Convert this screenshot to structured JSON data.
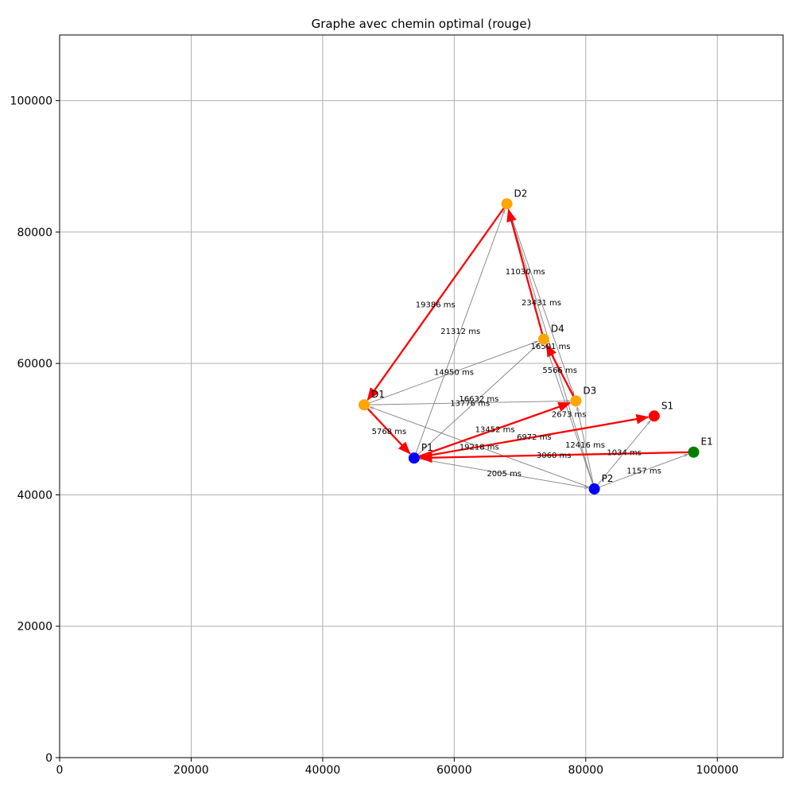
{
  "chart_data": {
    "type": "graph",
    "title": "Graphe avec chemin optimal (rouge)",
    "xlim": [
      0,
      110000
    ],
    "ylim": [
      0,
      110000
    ],
    "grid": true,
    "xticks": [
      0,
      20000,
      40000,
      60000,
      80000,
      100000
    ],
    "yticks": [
      0,
      20000,
      40000,
      60000,
      80000,
      100000
    ],
    "colors": {
      "P": "#0000ff",
      "D": "#ffa500",
      "S": "#ff0000",
      "E": "#008000",
      "edge": "#808080",
      "path": "#ff0000"
    },
    "nodes": [
      {
        "id": "D1",
        "label": "D1",
        "x": 46300,
        "y": 53700,
        "type": "D"
      },
      {
        "id": "D2",
        "label": "D2",
        "x": 68000,
        "y": 84300,
        "type": "D"
      },
      {
        "id": "D3",
        "label": "D3",
        "x": 78500,
        "y": 54300,
        "type": "D"
      },
      {
        "id": "D4",
        "label": "D4",
        "x": 73600,
        "y": 63700,
        "type": "D"
      },
      {
        "id": "P1",
        "label": "P1",
        "x": 53900,
        "y": 45600,
        "type": "P"
      },
      {
        "id": "P2",
        "label": "P2",
        "x": 81300,
        "y": 40900,
        "type": "P"
      },
      {
        "id": "S1",
        "label": "S1",
        "x": 90400,
        "y": 52000,
        "type": "S"
      },
      {
        "id": "E1",
        "label": "E1",
        "x": 96400,
        "y": 46500,
        "type": "E"
      }
    ],
    "edges": [
      {
        "from": "P1",
        "to": "D2",
        "label": "21312 ms"
      },
      {
        "from": "P1",
        "to": "D4",
        "label": "16632 ms"
      },
      {
        "from": "P1",
        "to": "P2",
        "label": "2005 ms"
      },
      {
        "from": "P2",
        "to": "D2",
        "label": "16501 ms"
      },
      {
        "from": "P2",
        "to": "D4",
        "label": "2673 ms"
      },
      {
        "from": "P2",
        "to": "D3",
        "label": "12416 ms"
      },
      {
        "from": "P2",
        "to": "D1",
        "label": "19218 ms"
      },
      {
        "from": "P2",
        "to": "S1",
        "label": "1034 ms"
      },
      {
        "from": "P2",
        "to": "E1",
        "label": "1157 ms"
      },
      {
        "from": "D1",
        "to": "D4",
        "label": "14950 ms"
      },
      {
        "from": "D1",
        "to": "D3",
        "label": "13776 ms"
      },
      {
        "from": "D2",
        "to": "D3",
        "label": "23431 ms"
      },
      {
        "from": "E1",
        "to": "P1",
        "label": "3060 ms"
      },
      {
        "from": "P1",
        "to": "D1",
        "label": "5768 ms"
      },
      {
        "from": "P1",
        "to": "D3",
        "label": "13452 ms"
      },
      {
        "from": "D3",
        "to": "D4",
        "label": "5566 ms"
      },
      {
        "from": "D4",
        "to": "D2",
        "label": "11030 ms"
      },
      {
        "from": "D2",
        "to": "D1",
        "label": "19386 ms"
      },
      {
        "from": "P1",
        "to": "S1",
        "label": "6972 ms"
      }
    ],
    "optimal_path": [
      {
        "from": "E1",
        "to": "P1"
      },
      {
        "from": "P1",
        "to": "D3"
      },
      {
        "from": "D3",
        "to": "D4"
      },
      {
        "from": "D4",
        "to": "D2"
      },
      {
        "from": "D2",
        "to": "D1"
      },
      {
        "from": "D1",
        "to": "P1"
      },
      {
        "from": "P1",
        "to": "S1"
      }
    ]
  }
}
